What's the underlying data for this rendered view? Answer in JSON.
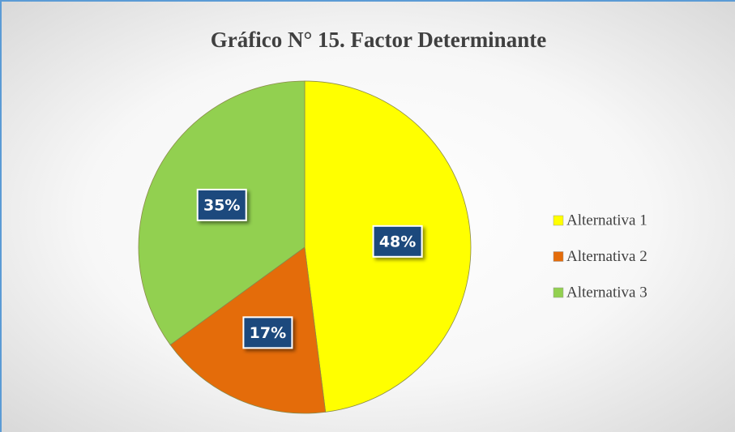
{
  "chart_data": {
    "type": "pie",
    "title": "Gráfico N° 15. Factor Determinante",
    "categories": [
      "Alternativa 1",
      "Alternativa 2",
      "Alternativa 3"
    ],
    "values": [
      48,
      17,
      35
    ],
    "value_labels": [
      "48%",
      "17%",
      "35%"
    ],
    "colors": [
      "#ffff00",
      "#e46c0a",
      "#92d050"
    ],
    "legend": "right"
  }
}
